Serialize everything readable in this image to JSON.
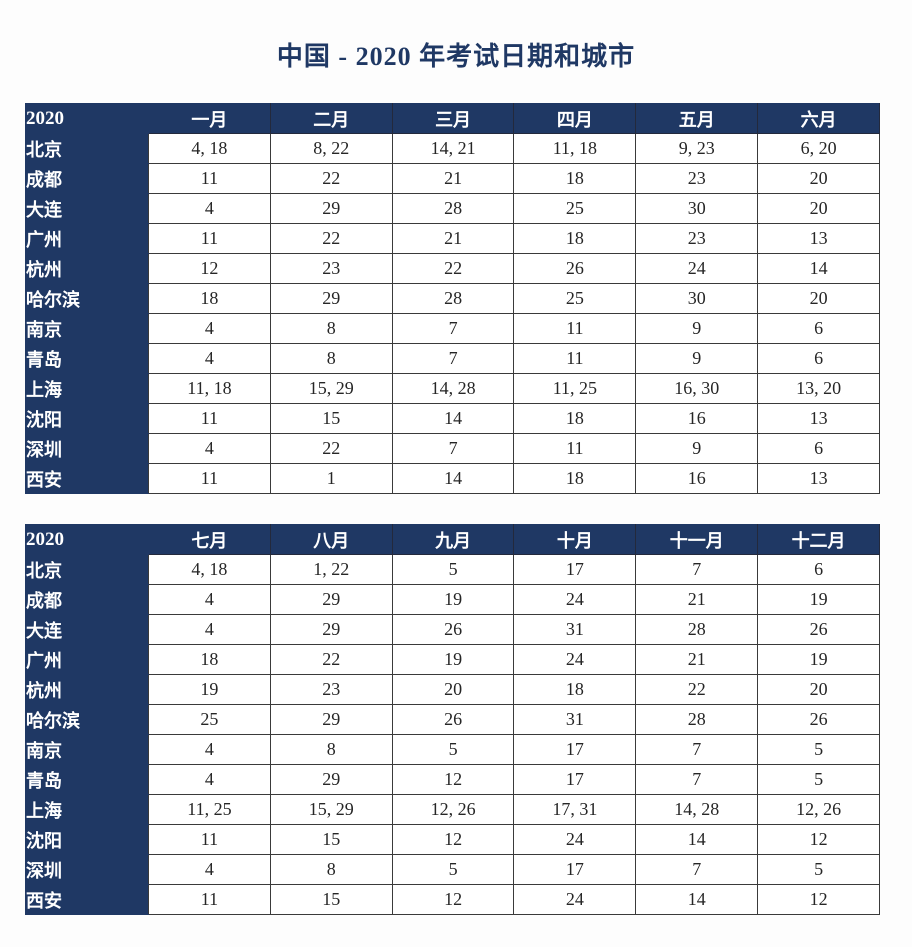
{
  "title": "中国 - 2020 年考试日期和城市",
  "colors": {
    "navy": "#1f3864",
    "header_text": "#ffffff",
    "cell_text": "#262626",
    "grid_line": "#3a3a3a",
    "page_bg": "#fdfdfd"
  },
  "tables": [
    {
      "year_label": "2020",
      "months": [
        "一月",
        "二月",
        "三月",
        "四月",
        "五月",
        "六月"
      ],
      "rows": [
        {
          "city": "北京",
          "dates": [
            "4, 18",
            "8, 22",
            "14, 21",
            "11, 18",
            "9, 23",
            "6, 20"
          ]
        },
        {
          "city": "成都",
          "dates": [
            "11",
            "22",
            "21",
            "18",
            "23",
            "20"
          ]
        },
        {
          "city": "大连",
          "dates": [
            "4",
            "29",
            "28",
            "25",
            "30",
            "20"
          ]
        },
        {
          "city": "广州",
          "dates": [
            "11",
            "22",
            "21",
            "18",
            "23",
            "13"
          ]
        },
        {
          "city": "杭州",
          "dates": [
            "12",
            "23",
            "22",
            "26",
            "24",
            "14"
          ]
        },
        {
          "city": "哈尔滨",
          "dates": [
            "18",
            "29",
            "28",
            "25",
            "30",
            "20"
          ]
        },
        {
          "city": "南京",
          "dates": [
            "4",
            "8",
            "7",
            "11",
            "9",
            "6"
          ]
        },
        {
          "city": "青岛",
          "dates": [
            "4",
            "8",
            "7",
            "11",
            "9",
            "6"
          ]
        },
        {
          "city": "上海",
          "dates": [
            "11, 18",
            "15, 29",
            "14, 28",
            "11, 25",
            "16, 30",
            "13, 20"
          ]
        },
        {
          "city": "沈阳",
          "dates": [
            "11",
            "15",
            "14",
            "18",
            "16",
            "13"
          ]
        },
        {
          "city": "深圳",
          "dates": [
            "4",
            "22",
            "7",
            "11",
            "9",
            "6"
          ]
        },
        {
          "city": "西安",
          "dates": [
            "11",
            "1",
            "14",
            "18",
            "16",
            "13"
          ]
        }
      ]
    },
    {
      "year_label": "2020",
      "months": [
        "七月",
        "八月",
        "九月",
        "十月",
        "十一月",
        "十二月"
      ],
      "rows": [
        {
          "city": "北京",
          "dates": [
            "4, 18",
            "1, 22",
            "5",
            "17",
            "7",
            "6"
          ]
        },
        {
          "city": "成都",
          "dates": [
            "4",
            "29",
            "19",
            "24",
            "21",
            "19"
          ]
        },
        {
          "city": "大连",
          "dates": [
            "4",
            "29",
            "26",
            "31",
            "28",
            "26"
          ]
        },
        {
          "city": "广州",
          "dates": [
            "18",
            "22",
            "19",
            "24",
            "21",
            "19"
          ]
        },
        {
          "city": "杭州",
          "dates": [
            "19",
            "23",
            "20",
            "18",
            "22",
            "20"
          ]
        },
        {
          "city": "哈尔滨",
          "dates": [
            "25",
            "29",
            "26",
            "31",
            "28",
            "26"
          ]
        },
        {
          "city": "南京",
          "dates": [
            "4",
            "8",
            "5",
            "17",
            "7",
            "5"
          ]
        },
        {
          "city": "青岛",
          "dates": [
            "4",
            "29",
            "12",
            "17",
            "7",
            "5"
          ]
        },
        {
          "city": "上海",
          "dates": [
            "11, 25",
            "15, 29",
            "12, 26",
            "17, 31",
            "14, 28",
            "12, 26"
          ]
        },
        {
          "city": "沈阳",
          "dates": [
            "11",
            "15",
            "12",
            "24",
            "14",
            "12"
          ]
        },
        {
          "city": "深圳",
          "dates": [
            "4",
            "8",
            "5",
            "17",
            "7",
            "5"
          ]
        },
        {
          "city": "西安",
          "dates": [
            "11",
            "15",
            "12",
            "24",
            "14",
            "12"
          ]
        }
      ]
    }
  ]
}
